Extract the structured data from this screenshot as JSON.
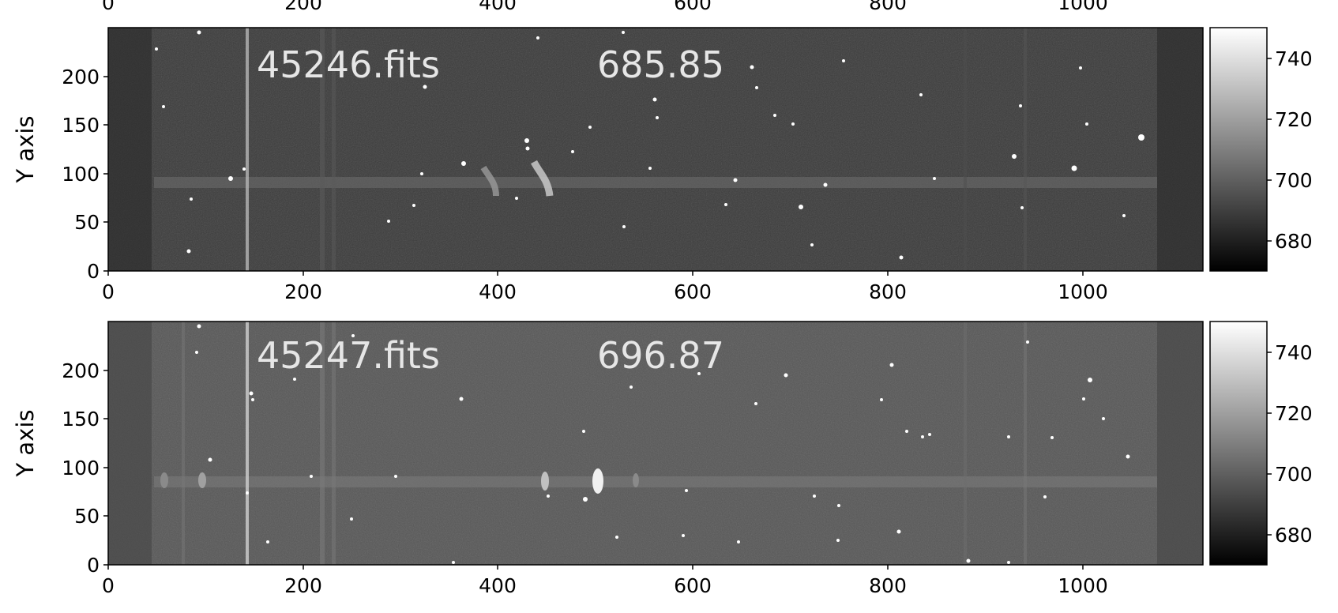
{
  "top_axis_ticks": [
    "0",
    "200",
    "400",
    "600",
    "800",
    "1000"
  ],
  "panels": [
    {
      "filename": "45246.fits",
      "value": "685.85",
      "ylabel": "Y axis",
      "x_ticks": [
        "0",
        "200",
        "400",
        "600",
        "800",
        "1000"
      ],
      "y_ticks": [
        "0",
        "50",
        "100",
        "150",
        "200"
      ],
      "colorbar_ticks": [
        "680",
        "700",
        "720",
        "740"
      ],
      "background_level": 0.22
    },
    {
      "filename": "45247.fits",
      "value": "696.87",
      "ylabel": "Y axis",
      "x_ticks": [
        "0",
        "200",
        "400",
        "600",
        "800",
        "1000"
      ],
      "y_ticks": [
        "0",
        "50",
        "100",
        "150",
        "200"
      ],
      "colorbar_ticks": [
        "680",
        "700",
        "720",
        "740"
      ],
      "background_level": 0.34
    }
  ],
  "colors": {
    "frame": "#000000",
    "text_overlay": "#e6e6e6",
    "colormap_low": "#000000",
    "colormap_high": "#ffffff"
  },
  "colormap": "gray"
}
